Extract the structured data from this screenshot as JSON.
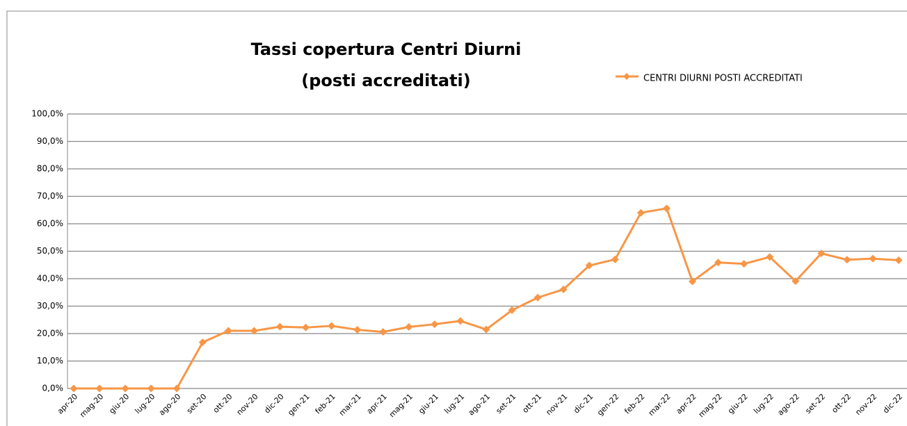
{
  "chart_data": {
    "type": "line",
    "title": [
      "Tassi copertura Centri Diurni",
      "(posti accreditati)"
    ],
    "categories": [
      "apr-20",
      "mag-20",
      "giu-20",
      "lug-20",
      "ago-20",
      "set-20",
      "ott-20",
      "nov-20",
      "dic-20",
      "gen-21",
      "feb-21",
      "mar-21",
      "apr-21",
      "mag-21",
      "giu-21",
      "lug-21",
      "ago-21",
      "set-21",
      "ott-21",
      "nov-21",
      "dic-21",
      "gen-22",
      "feb-22",
      "mar-22",
      "apr-22",
      "mag-22",
      "giu-22",
      "lug-22",
      "ago-22",
      "set-22",
      "ott-22",
      "nov-22",
      "dic-22"
    ],
    "series": [
      {
        "name": "CENTRI DIURNI POSTI ACCREDITATI",
        "color": "#f79646",
        "values": [
          0,
          0,
          0,
          0,
          0,
          16.8,
          21,
          21,
          22.5,
          22.2,
          22.8,
          21.4,
          20.6,
          22.4,
          23.4,
          24.6,
          21.5,
          28.5,
          33.1,
          36.1,
          44.8,
          47,
          64,
          65.6,
          39,
          45.9,
          45.4,
          47.9,
          39.1,
          49.2,
          46.9,
          47.3,
          46.7
        ]
      }
    ],
    "ylim": [
      0,
      100
    ],
    "yticks": [
      {
        "value": 0,
        "label": "0,0%"
      },
      {
        "value": 10,
        "label": "10,0%"
      },
      {
        "value": 20,
        "label": "20,0%"
      },
      {
        "value": 30,
        "label": "30,0%"
      },
      {
        "value": 40,
        "label": "40,0%"
      },
      {
        "value": 50,
        "label": "50,0%"
      },
      {
        "value": 60,
        "label": "60,0%"
      },
      {
        "value": 70,
        "label": "70,0%"
      },
      {
        "value": 80,
        "label": "80,0%"
      },
      {
        "value": 90,
        "label": "90,0%"
      },
      {
        "value": 100,
        "label": "100,0%"
      }
    ],
    "grid": true
  }
}
